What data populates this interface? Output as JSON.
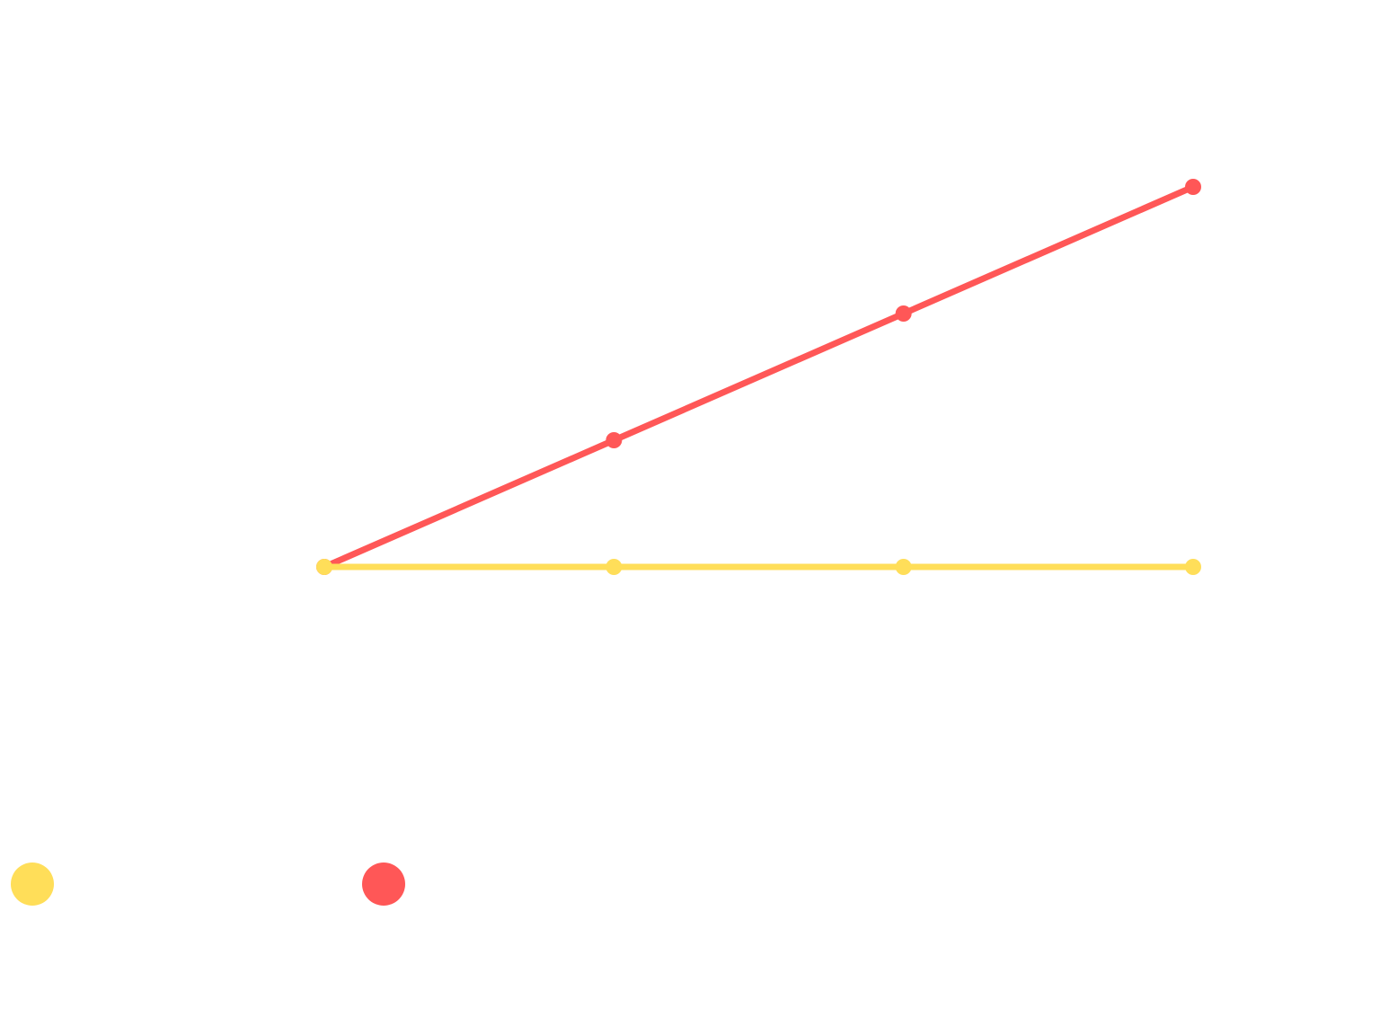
{
  "chart_data": {
    "type": "line",
    "x": [
      0,
      1,
      2,
      3
    ],
    "ylim": [
      0,
      6
    ],
    "grid": false,
    "legend_position": "bottom-left",
    "series": [
      {
        "color": "#FFDE59",
        "values": [
          0,
          0,
          0,
          0
        ]
      },
      {
        "color": "#FF5757",
        "values": [
          0,
          1,
          2,
          3
        ]
      }
    ]
  }
}
